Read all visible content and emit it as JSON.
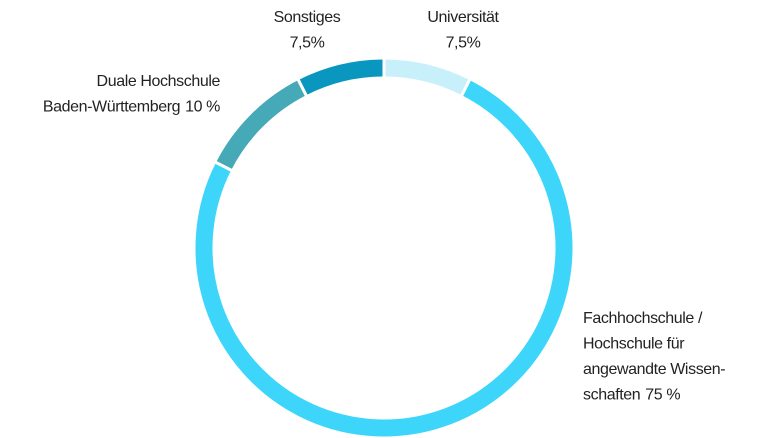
{
  "chart_data": {
    "type": "donut",
    "categories": [
      "Universität",
      "Fachhochschule /\nHochschule für\nangewandte Wissen-\nschaften",
      "Duale Hochschule\nBaden-Württemberg",
      "Sonstiges"
    ],
    "values": [
      7.5,
      75,
      10,
      7.5
    ],
    "value_labels": [
      "7,5%",
      "75 %",
      "10 %",
      "7,5%"
    ],
    "colors": [
      "#c8f0fb",
      "#3dd6fa",
      "#45a9b8",
      "#0a97bf"
    ]
  }
}
